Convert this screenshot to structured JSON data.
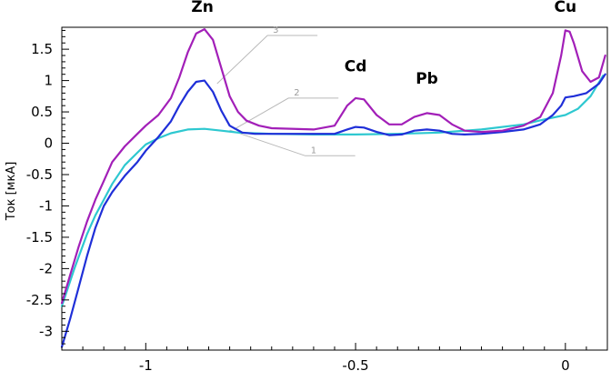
{
  "chart_data": {
    "type": "line",
    "xlabel": "",
    "ylabel": "Ток [мкА]",
    "xlim": [
      -1.2,
      0.1
    ],
    "ylim": [
      -3.3,
      1.85
    ],
    "grid": false,
    "x_ticks": [
      -1,
      -0.5,
      0
    ],
    "x_tick_labels": [
      "-1",
      "-0.5",
      "0"
    ],
    "y_ticks": [
      1.5,
      1,
      0.5,
      0,
      -0.5,
      -1,
      -1.5,
      -2,
      -2.5,
      -3
    ],
    "y_tick_labels": [
      "1.5",
      "1",
      "0.5",
      "0",
      "-0.5",
      "-1",
      "-1.5",
      "-2",
      "-2.5",
      "-3"
    ],
    "annotations": [
      {
        "text": "Zn",
        "x": -0.865,
        "y": 2.1
      },
      {
        "text": "Cd",
        "x": -0.5,
        "y": 1.15
      },
      {
        "text": "Pb",
        "x": -0.33,
        "y": 0.95
      },
      {
        "text": "Cu",
        "x": 0.0,
        "y": 2.1
      }
    ],
    "callouts": [
      {
        "text": "1",
        "x": -0.62,
        "y": -0.2
      },
      {
        "text": "2",
        "x": -0.66,
        "y": 0.72
      },
      {
        "text": "3",
        "x": -0.71,
        "y": 1.72
      }
    ],
    "series": [
      {
        "color": "#2ec8d0",
        "x": [
          -1.2,
          -1.17,
          -1.14,
          -1.12,
          -1.1,
          -1.08,
          -1.05,
          -1.02,
          -1.0,
          -0.97,
          -0.94,
          -0.9,
          -0.86,
          -0.82,
          -0.78,
          -0.7,
          -0.6,
          -0.5,
          -0.4,
          -0.3,
          -0.2,
          -0.1,
          -0.05,
          0.0,
          0.03,
          0.06,
          0.09
        ],
        "y": [
          -2.6,
          -2.0,
          -1.45,
          -1.15,
          -0.9,
          -0.65,
          -0.35,
          -0.15,
          -0.02,
          0.08,
          0.16,
          0.22,
          0.23,
          0.2,
          0.17,
          0.15,
          0.14,
          0.14,
          0.15,
          0.17,
          0.22,
          0.3,
          0.38,
          0.45,
          0.55,
          0.75,
          1.08
        ]
      },
      {
        "color": "#1f2fd8",
        "x": [
          -1.2,
          -1.18,
          -1.16,
          -1.14,
          -1.12,
          -1.1,
          -1.08,
          -1.05,
          -1.02,
          -1.0,
          -0.97,
          -0.94,
          -0.92,
          -0.9,
          -0.88,
          -0.86,
          -0.84,
          -0.82,
          -0.8,
          -0.77,
          -0.74,
          -0.7,
          -0.6,
          -0.55,
          -0.52,
          -0.5,
          -0.48,
          -0.45,
          -0.42,
          -0.39,
          -0.36,
          -0.33,
          -0.3,
          -0.27,
          -0.24,
          -0.2,
          -0.15,
          -0.1,
          -0.06,
          -0.03,
          -0.01,
          0.0,
          0.02,
          0.05,
          0.08,
          0.095
        ],
        "y": [
          -3.25,
          -2.8,
          -2.3,
          -1.8,
          -1.35,
          -1.0,
          -0.78,
          -0.52,
          -0.3,
          -0.12,
          0.1,
          0.35,
          0.6,
          0.82,
          0.98,
          1.0,
          0.82,
          0.52,
          0.28,
          0.17,
          0.15,
          0.15,
          0.15,
          0.15,
          0.22,
          0.26,
          0.25,
          0.18,
          0.13,
          0.14,
          0.2,
          0.22,
          0.2,
          0.15,
          0.14,
          0.15,
          0.18,
          0.22,
          0.3,
          0.45,
          0.6,
          0.73,
          0.75,
          0.8,
          0.95,
          1.1
        ]
      },
      {
        "color": "#a21fb8",
        "x": [
          -1.2,
          -1.18,
          -1.16,
          -1.14,
          -1.12,
          -1.1,
          -1.08,
          -1.05,
          -1.02,
          -1.0,
          -0.97,
          -0.94,
          -0.92,
          -0.9,
          -0.88,
          -0.86,
          -0.84,
          -0.82,
          -0.8,
          -0.78,
          -0.76,
          -0.73,
          -0.7,
          -0.6,
          -0.55,
          -0.52,
          -0.5,
          -0.48,
          -0.45,
          -0.42,
          -0.39,
          -0.36,
          -0.33,
          -0.3,
          -0.27,
          -0.24,
          -0.2,
          -0.15,
          -0.1,
          -0.06,
          -0.03,
          -0.01,
          0.0,
          0.01,
          0.02,
          0.04,
          0.06,
          0.08,
          0.095
        ],
        "y": [
          -2.55,
          -2.1,
          -1.65,
          -1.25,
          -0.9,
          -0.6,
          -0.3,
          -0.05,
          0.15,
          0.28,
          0.45,
          0.72,
          1.05,
          1.45,
          1.75,
          1.82,
          1.65,
          1.2,
          0.75,
          0.5,
          0.36,
          0.28,
          0.24,
          0.22,
          0.28,
          0.6,
          0.72,
          0.7,
          0.45,
          0.3,
          0.3,
          0.42,
          0.48,
          0.45,
          0.3,
          0.2,
          0.18,
          0.2,
          0.28,
          0.42,
          0.8,
          1.4,
          1.8,
          1.78,
          1.6,
          1.15,
          0.98,
          1.05,
          1.4
        ]
      }
    ]
  }
}
